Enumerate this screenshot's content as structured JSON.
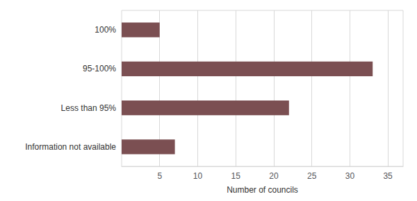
{
  "chart_data": {
    "type": "bar",
    "orientation": "horizontal",
    "categories": [
      "Information not available",
      "Less than 95%",
      "95-100%",
      "100%"
    ],
    "values": [
      7,
      22,
      33,
      5
    ],
    "color": "#7B4F52",
    "xlabel": "Number of councils",
    "xlim": [
      0,
      37
    ],
    "xticks": [
      5,
      10,
      15,
      20,
      25,
      30,
      35
    ],
    "grid": true
  }
}
